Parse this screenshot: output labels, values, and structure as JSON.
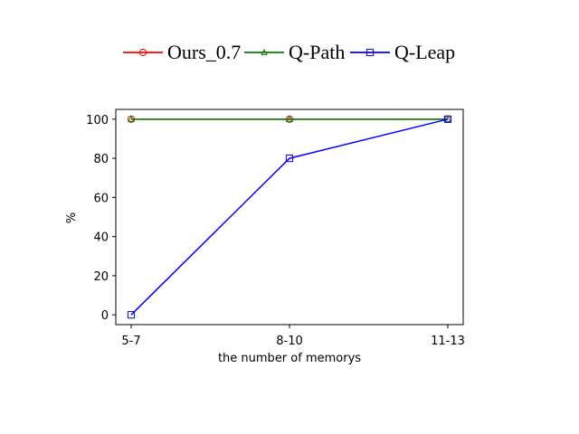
{
  "chart_data": {
    "type": "line",
    "categories": [
      "5-7",
      "8-10",
      "11-13"
    ],
    "series": [
      {
        "name": "Ours_0.7",
        "values": [
          100,
          100,
          100
        ],
        "color": "#ff0000",
        "marker": "circle"
      },
      {
        "name": "Q-Path",
        "values": [
          100,
          100,
          100
        ],
        "color": "#008000",
        "marker": "triangle"
      },
      {
        "name": "Q-Leap",
        "values": [
          0,
          80,
          100
        ],
        "color": "#0000ff",
        "marker": "square"
      }
    ],
    "title": "",
    "xlabel": "the number of memorys",
    "ylabel": "%",
    "ylim": [
      -5,
      105
    ],
    "yticks": [
      0,
      20,
      40,
      60,
      80,
      100
    ],
    "grid": false,
    "legend_position": "top-center"
  }
}
